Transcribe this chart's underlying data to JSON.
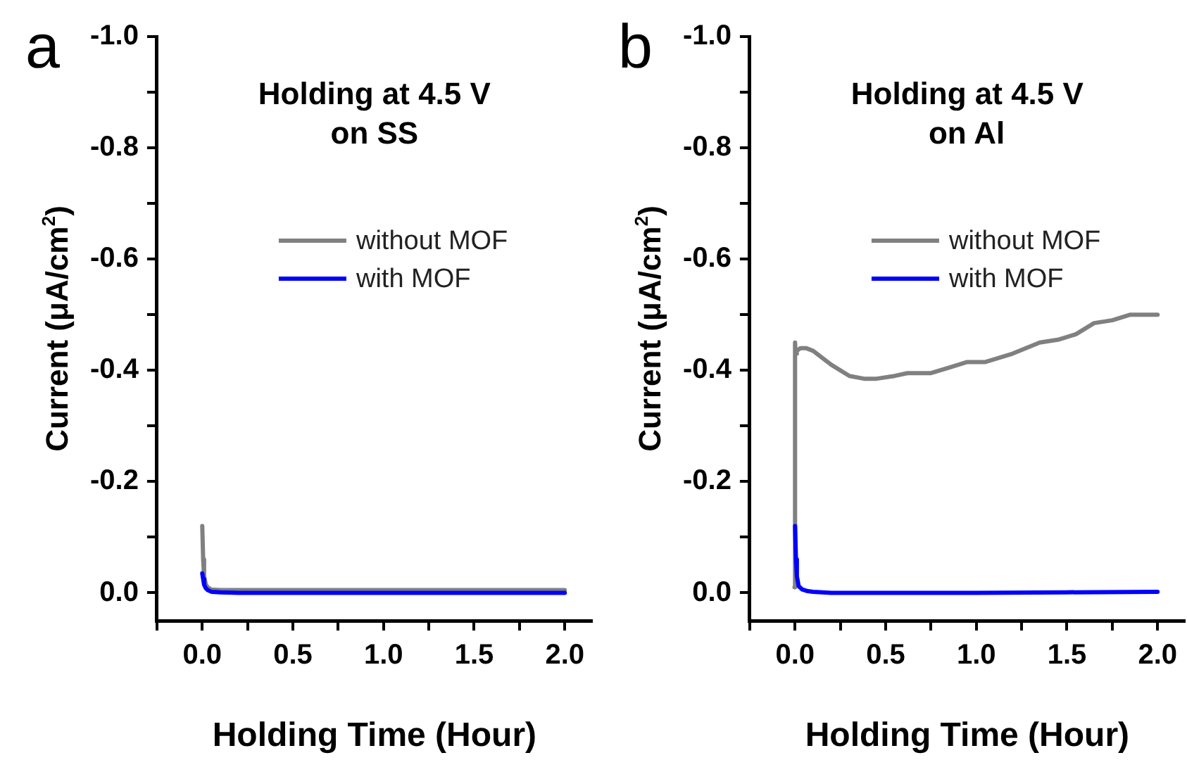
{
  "chart_data": [
    {
      "type": "line",
      "title": "Holding at 4.5 V\non SS",
      "xlabel": "Holding Time (Hour)",
      "ylabel": "Current (μA/cm$^{2}$)",
      "annotations": [
        "a"
      ],
      "legend": "top",
      "grid": false,
      "marker": "none",
      "line_style": "solid",
      "xlim": [
        -0.25,
        2.15
      ],
      "xticks": [
        {
          "value": -0.25,
          "label": null
        },
        {
          "value": 0,
          "label": "0.0"
        },
        {
          "value": 0.25,
          "label": null
        },
        {
          "value": 0.5,
          "label": "0.5"
        },
        {
          "value": 0.75,
          "label": null
        },
        {
          "value": 1,
          "label": "1.0"
        },
        {
          "value": 1.25,
          "label": null
        },
        {
          "value": 1.5,
          "label": "1.5"
        },
        {
          "value": 1.75,
          "label": null
        },
        {
          "value": 2,
          "label": "2.0"
        }
      ],
      "ylim": [
        0.05,
        -1.0
      ],
      "yticks": [
        {
          "value": 0,
          "label": "0.0"
        },
        {
          "value": -0.1,
          "label": null
        },
        {
          "value": -0.2,
          "label": "-0.2"
        },
        {
          "value": -0.3,
          "label": null
        },
        {
          "value": -0.4,
          "label": "-0.4"
        },
        {
          "value": -0.5,
          "label": null
        },
        {
          "value": -0.6,
          "label": "-0.6"
        },
        {
          "value": -0.7,
          "label": null
        },
        {
          "value": -0.8,
          "label": "-0.8"
        },
        {
          "value": -0.9,
          "label": null
        },
        {
          "value": -1,
          "label": "-1.0"
        }
      ],
      "series": [
        {
          "name": "without MOF",
          "color": "#808080",
          "x": [
            0,
            0.005,
            0.01,
            0.02,
            0.03,
            0.05,
            0.1,
            0.2,
            0.5,
            1.0,
            1.5,
            2.0
          ],
          "values": [
            -0.12,
            -0.06,
            -0.03,
            -0.015,
            -0.01,
            -0.006,
            -0.005,
            -0.005,
            -0.005,
            -0.005,
            -0.005,
            -0.005
          ]
        },
        {
          "name": "with MOF",
          "color": "#0000ff",
          "x": [
            0,
            0.005,
            0.01,
            0.02,
            0.03,
            0.05,
            0.1,
            0.2,
            0.5,
            1.0,
            1.5,
            2.0
          ],
          "values": [
            -0.035,
            -0.025,
            -0.015,
            -0.008,
            -0.005,
            -0.002,
            -0.001,
            0,
            0,
            0,
            0,
            0
          ]
        }
      ]
    },
    {
      "type": "line",
      "title": "Holding at 4.5 V\non Al",
      "xlabel": "Holding Time (Hour)",
      "ylabel": "Current (μA/cm$^{2}$)",
      "annotations": [
        "b"
      ],
      "legend": "top",
      "grid": false,
      "marker": "none",
      "line_style": "solid",
      "xlim": [
        -0.25,
        2.15
      ],
      "xticks": [
        {
          "value": -0.25,
          "label": null
        },
        {
          "value": 0,
          "label": "0.0"
        },
        {
          "value": 0.25,
          "label": null
        },
        {
          "value": 0.5,
          "label": "0.5"
        },
        {
          "value": 0.75,
          "label": null
        },
        {
          "value": 1,
          "label": "1.0"
        },
        {
          "value": 1.25,
          "label": null
        },
        {
          "value": 1.5,
          "label": "1.5"
        },
        {
          "value": 1.75,
          "label": null
        },
        {
          "value": 2,
          "label": "2.0"
        }
      ],
      "ylim": [
        0.05,
        -1.0
      ],
      "yticks": [
        {
          "value": 0,
          "label": "0.0"
        },
        {
          "value": -0.1,
          "label": null
        },
        {
          "value": -0.2,
          "label": "-0.2"
        },
        {
          "value": -0.3,
          "label": null
        },
        {
          "value": -0.4,
          "label": "-0.4"
        },
        {
          "value": -0.5,
          "label": null
        },
        {
          "value": -0.6,
          "label": "-0.6"
        },
        {
          "value": -0.7,
          "label": null
        },
        {
          "value": -0.8,
          "label": "-0.8"
        },
        {
          "value": -0.9,
          "label": null
        },
        {
          "value": -1,
          "label": "-1.0"
        }
      ],
      "series": [
        {
          "name": "without MOF",
          "color": "#808080",
          "x": [
            -0.003,
            0,
            0.003,
            0.01,
            0.03,
            0.06,
            0.1,
            0.2,
            0.3,
            0.38,
            0.45,
            0.55,
            0.62,
            0.75,
            0.85,
            0.95,
            1.05,
            1.2,
            1.35,
            1.45,
            1.55,
            1.65,
            1.75,
            1.85,
            2.0
          ],
          "values": [
            -0.01,
            -0.45,
            -0.43,
            -0.435,
            -0.44,
            -0.44,
            -0.435,
            -0.41,
            -0.39,
            -0.385,
            -0.385,
            -0.39,
            -0.395,
            -0.395,
            -0.405,
            -0.415,
            -0.415,
            -0.43,
            -0.45,
            -0.455,
            -0.465,
            -0.485,
            -0.49,
            -0.5,
            -0.5
          ]
        },
        {
          "name": "with MOF",
          "color": "#0000ff",
          "x": [
            0,
            0.005,
            0.01,
            0.02,
            0.04,
            0.07,
            0.1,
            0.2,
            0.5,
            1.0,
            1.5,
            2.0
          ],
          "values": [
            -0.12,
            -0.06,
            -0.03,
            -0.012,
            -0.006,
            -0.003,
            -0.002,
            0,
            0,
            0,
            -0.001,
            -0.002
          ]
        }
      ]
    }
  ]
}
